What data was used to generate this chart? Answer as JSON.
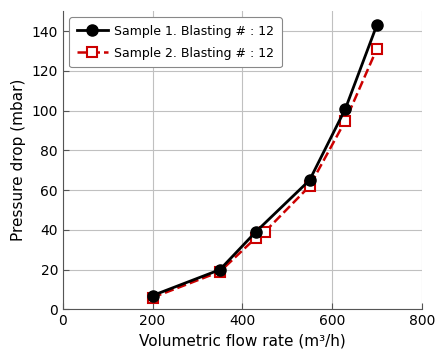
{
  "sample1_x": [
    200,
    350,
    430,
    550,
    630,
    700
  ],
  "sample1_y": [
    7,
    20,
    39,
    65,
    101,
    143
  ],
  "sample2_x": [
    200,
    350,
    430,
    450,
    550,
    630,
    700
  ],
  "sample2_y": [
    6,
    19,
    36,
    39,
    62,
    95,
    131
  ],
  "label1": "Sample 1. Blasting # : 12",
  "label2": "Sample 2. Blasting # : 12",
  "xlabel": "Volumetric flow rate (m³/h)",
  "ylabel": "Pressure drop (mbar)",
  "xlim": [
    0,
    800
  ],
  "ylim": [
    0,
    150
  ],
  "xticks": [
    0,
    200,
    400,
    600,
    800
  ],
  "yticks": [
    0,
    20,
    40,
    60,
    80,
    100,
    120,
    140
  ],
  "line1_color": "#000000",
  "line2_color": "#cc0000",
  "bg_color": "#ffffff",
  "grid_color": "#c0c0c0",
  "tick_fontsize": 10,
  "label_fontsize": 11,
  "legend_fontsize": 9
}
